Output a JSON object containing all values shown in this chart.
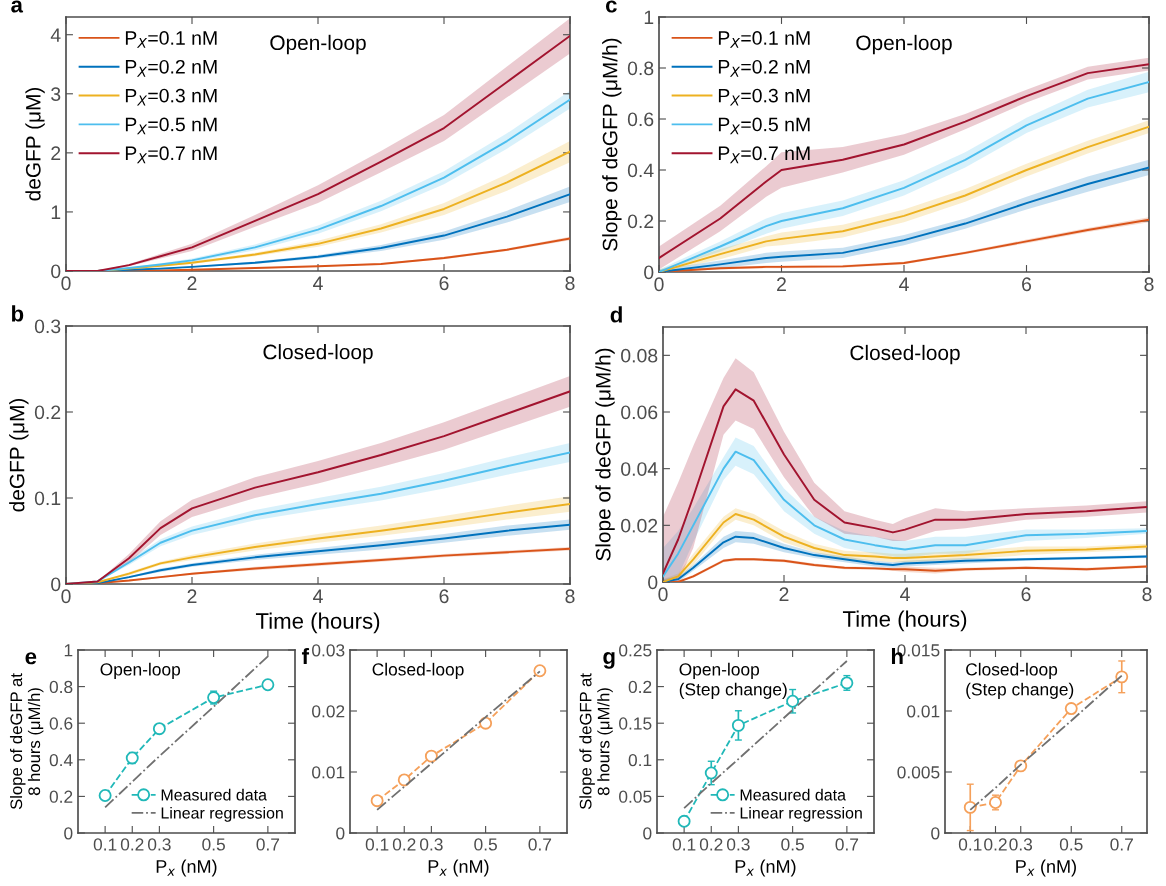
{
  "chart_data": [
    {
      "type": "line",
      "title": "a",
      "ylabel": "deGFP (μM)",
      "annotations": [
        "Open-loop"
      ],
      "legend": "top left",
      "xlim": [
        0,
        8
      ],
      "xticks": [
        0,
        2,
        4,
        6,
        8
      ],
      "ylim": [
        0,
        4.3
      ],
      "yticks": [
        0,
        1,
        2,
        3,
        4
      ],
      "x": [
        0,
        0.5,
        1,
        1.5,
        2,
        3,
        4,
        5,
        6,
        7,
        8
      ],
      "series": [
        {
          "name": "P$_{X}$=0.1 nM",
          "color": "#d95319",
          "values": [
            0,
            0,
            0.01,
            0.01,
            0.02,
            0.05,
            0.08,
            0.12,
            0.22,
            0.36,
            0.55
          ],
          "lower": [
            0,
            0,
            0.01,
            0.01,
            0.02,
            0.04,
            0.07,
            0.11,
            0.2,
            0.34,
            0.52
          ],
          "upper": [
            0,
            0,
            0.01,
            0.01,
            0.02,
            0.06,
            0.09,
            0.13,
            0.24,
            0.38,
            0.58
          ]
        },
        {
          "name": "P$_{X}$=0.2 nM",
          "color": "#0072bd",
          "values": [
            0,
            0,
            0.02,
            0.04,
            0.07,
            0.14,
            0.24,
            0.39,
            0.6,
            0.92,
            1.3
          ],
          "lower": [
            0,
            0,
            0.02,
            0.03,
            0.06,
            0.12,
            0.21,
            0.34,
            0.53,
            0.82,
            1.17
          ],
          "upper": [
            0,
            0,
            0.02,
            0.05,
            0.08,
            0.16,
            0.27,
            0.44,
            0.67,
            1.02,
            1.43
          ]
        },
        {
          "name": "P$_{X}$=0.3 nM",
          "color": "#edb120",
          "values": [
            0,
            0,
            0.04,
            0.09,
            0.14,
            0.28,
            0.46,
            0.72,
            1.05,
            1.5,
            2.02
          ],
          "lower": [
            0,
            0,
            0.03,
            0.08,
            0.12,
            0.25,
            0.41,
            0.65,
            0.95,
            1.36,
            1.84
          ],
          "upper": [
            0,
            0,
            0.05,
            0.1,
            0.16,
            0.31,
            0.51,
            0.79,
            1.15,
            1.64,
            2.2
          ]
        },
        {
          "name": "P$_{X}$=0.5 nM",
          "color": "#4dbeee",
          "values": [
            0,
            0,
            0.05,
            0.11,
            0.18,
            0.4,
            0.7,
            1.1,
            1.58,
            2.2,
            2.9
          ],
          "lower": [
            0,
            0,
            0.04,
            0.09,
            0.15,
            0.35,
            0.63,
            1.01,
            1.47,
            2.07,
            2.75
          ],
          "upper": [
            0,
            0,
            0.06,
            0.13,
            0.21,
            0.45,
            0.77,
            1.19,
            1.69,
            2.33,
            3.05
          ]
        },
        {
          "name": "P$_{X}$=0.7 nM",
          "color": "#a2142f",
          "values": [
            0,
            0,
            0.1,
            0.25,
            0.4,
            0.85,
            1.3,
            1.85,
            2.42,
            3.2,
            3.98
          ],
          "lower": [
            0,
            0,
            0.08,
            0.21,
            0.34,
            0.75,
            1.15,
            1.67,
            2.2,
            2.94,
            3.68
          ],
          "upper": [
            0,
            0,
            0.12,
            0.29,
            0.46,
            0.95,
            1.45,
            2.03,
            2.64,
            3.46,
            4.28
          ]
        }
      ]
    },
    {
      "type": "line",
      "title": "b",
      "ylabel": "deGFP (μM)",
      "xlabel": "Time (hours)",
      "annotations": [
        "Closed-loop"
      ],
      "xlim": [
        0,
        8
      ],
      "xticks": [
        0,
        2,
        4,
        6,
        8
      ],
      "ylim": [
        0,
        0.3
      ],
      "yticks": [
        0,
        0.1,
        0.2,
        0.3
      ],
      "x": [
        0,
        0.5,
        1,
        1.5,
        2,
        3,
        4,
        5,
        6,
        7,
        8
      ],
      "series": [
        {
          "color": "#d95319",
          "values": [
            0,
            0.001,
            0.004,
            0.008,
            0.012,
            0.018,
            0.023,
            0.028,
            0.033,
            0.037,
            0.041
          ],
          "lower": [
            0,
            0.001,
            0.003,
            0.007,
            0.011,
            0.016,
            0.021,
            0.026,
            0.031,
            0.035,
            0.039
          ],
          "upper": [
            0,
            0.001,
            0.005,
            0.009,
            0.013,
            0.02,
            0.025,
            0.03,
            0.035,
            0.039,
            0.043
          ]
        },
        {
          "color": "#0072bd",
          "values": [
            0,
            0.001,
            0.008,
            0.016,
            0.022,
            0.031,
            0.038,
            0.045,
            0.053,
            0.062,
            0.069
          ],
          "lower": [
            0,
            0.001,
            0.007,
            0.014,
            0.02,
            0.028,
            0.034,
            0.04,
            0.048,
            0.056,
            0.063
          ],
          "upper": [
            0,
            0.001,
            0.009,
            0.018,
            0.024,
            0.034,
            0.042,
            0.05,
            0.058,
            0.068,
            0.075
          ]
        },
        {
          "color": "#edb120",
          "values": [
            0,
            0.002,
            0.012,
            0.024,
            0.031,
            0.043,
            0.053,
            0.062,
            0.072,
            0.083,
            0.093
          ],
          "lower": [
            0,
            0.002,
            0.01,
            0.022,
            0.028,
            0.039,
            0.048,
            0.056,
            0.065,
            0.075,
            0.084
          ],
          "upper": [
            0,
            0.002,
            0.014,
            0.026,
            0.034,
            0.047,
            0.058,
            0.068,
            0.079,
            0.091,
            0.102
          ]
        },
        {
          "color": "#4dbeee",
          "values": [
            0,
            0.003,
            0.025,
            0.048,
            0.062,
            0.08,
            0.093,
            0.105,
            0.12,
            0.137,
            0.153
          ],
          "lower": [
            0,
            0.003,
            0.022,
            0.044,
            0.057,
            0.074,
            0.086,
            0.097,
            0.111,
            0.127,
            0.142
          ],
          "upper": [
            0,
            0.003,
            0.028,
            0.052,
            0.067,
            0.086,
            0.1,
            0.113,
            0.129,
            0.147,
            0.164
          ]
        },
        {
          "color": "#a2142f",
          "values": [
            0,
            0.003,
            0.03,
            0.065,
            0.088,
            0.112,
            0.13,
            0.15,
            0.172,
            0.198,
            0.224
          ],
          "lower": [
            0,
            0.003,
            0.025,
            0.057,
            0.078,
            0.1,
            0.117,
            0.136,
            0.156,
            0.181,
            0.206
          ],
          "upper": [
            0,
            0.003,
            0.035,
            0.073,
            0.098,
            0.124,
            0.143,
            0.164,
            0.188,
            0.215,
            0.242
          ]
        }
      ]
    },
    {
      "type": "line",
      "title": "c",
      "ylabel": "Slope of deGFP (μM/h)",
      "annotations": [
        "Open-loop"
      ],
      "legend": "top left",
      "xlim": [
        0,
        8
      ],
      "xticks": [
        0,
        2,
        4,
        6,
        8
      ],
      "ylim": [
        0,
        1
      ],
      "yticks": [
        0,
        0.2,
        0.4,
        0.6,
        0.8,
        1
      ],
      "x": [
        0,
        1,
        1.75,
        2,
        3,
        4,
        5,
        6,
        7,
        8
      ],
      "series": [
        {
          "name": "P$_{X}$=0.1 nM",
          "color": "#d95319",
          "values": [
            0,
            0.015,
            0.02,
            0.02,
            0.022,
            0.035,
            0.075,
            0.12,
            0.165,
            0.205
          ],
          "lower": [
            0,
            0.01,
            0.015,
            0.015,
            0.017,
            0.03,
            0.07,
            0.113,
            0.157,
            0.195
          ],
          "upper": [
            0.005,
            0.02,
            0.025,
            0.025,
            0.027,
            0.04,
            0.08,
            0.127,
            0.173,
            0.215
          ]
        },
        {
          "name": "P$_{X}$=0.2 nM",
          "color": "#0072bd",
          "values": [
            0,
            0.03,
            0.055,
            0.06,
            0.075,
            0.125,
            0.19,
            0.27,
            0.345,
            0.41
          ],
          "lower": [
            0,
            0.015,
            0.035,
            0.04,
            0.055,
            0.105,
            0.17,
            0.245,
            0.315,
            0.38
          ],
          "upper": [
            0.01,
            0.045,
            0.075,
            0.08,
            0.095,
            0.145,
            0.21,
            0.295,
            0.375,
            0.44
          ]
        },
        {
          "name": "P$_{X}$=0.3 nM",
          "color": "#edb120",
          "values": [
            0,
            0.07,
            0.12,
            0.13,
            0.16,
            0.22,
            0.3,
            0.4,
            0.49,
            0.57
          ],
          "lower": [
            0,
            0.05,
            0.1,
            0.105,
            0.135,
            0.195,
            0.275,
            0.375,
            0.465,
            0.545
          ],
          "upper": [
            0.01,
            0.09,
            0.14,
            0.155,
            0.185,
            0.245,
            0.325,
            0.425,
            0.515,
            0.595
          ]
        },
        {
          "name": "P$_{X}$=0.5 nM",
          "color": "#4dbeee",
          "values": [
            0,
            0.1,
            0.18,
            0.2,
            0.25,
            0.33,
            0.44,
            0.575,
            0.68,
            0.745
          ],
          "lower": [
            0,
            0.08,
            0.15,
            0.17,
            0.22,
            0.3,
            0.41,
            0.545,
            0.645,
            0.705
          ],
          "upper": [
            0.01,
            0.12,
            0.21,
            0.23,
            0.28,
            0.36,
            0.47,
            0.605,
            0.715,
            0.785
          ]
        },
        {
          "name": "P$_{X}$=0.7 nM",
          "color": "#a2142f",
          "values": [
            0.055,
            0.21,
            0.355,
            0.4,
            0.44,
            0.5,
            0.59,
            0.69,
            0.78,
            0.815
          ],
          "lower": [
            0.01,
            0.16,
            0.295,
            0.33,
            0.39,
            0.46,
            0.56,
            0.665,
            0.755,
            0.79
          ],
          "upper": [
            0.1,
            0.26,
            0.415,
            0.47,
            0.49,
            0.54,
            0.62,
            0.715,
            0.805,
            0.84
          ]
        }
      ]
    },
    {
      "type": "line",
      "title": "d",
      "ylabel": "Slope of deGFP (μM/h)",
      "xlabel": "Time (hours)",
      "annotations": [
        "Closed-loop"
      ],
      "xlim": [
        0,
        8
      ],
      "xticks": [
        0,
        2,
        4,
        6,
        8
      ],
      "ylim": [
        0,
        0.09
      ],
      "yticks": [
        0,
        0.02,
        0.04,
        0.06,
        0.08
      ],
      "x": [
        0,
        0.25,
        0.5,
        1,
        1.2,
        1.5,
        2,
        2.5,
        3,
        3.5,
        3.8,
        4,
        4.5,
        5,
        6,
        7,
        8
      ],
      "series": [
        {
          "color": "#d95319",
          "values": [
            0,
            0,
            0.002,
            0.0075,
            0.008,
            0.008,
            0.0075,
            0.006,
            0.005,
            0.0048,
            0.0045,
            0.0045,
            0.004,
            0.0045,
            0.005,
            0.0045,
            0.0055
          ],
          "lower": [
            0,
            0,
            0.0015,
            0.007,
            0.0075,
            0.0075,
            0.007,
            0.0055,
            0.0045,
            0.0043,
            0.004,
            0.0035,
            0.003,
            0.004,
            0.0045,
            0.004,
            0.005
          ],
          "upper": [
            0,
            0.0005,
            0.0025,
            0.008,
            0.0085,
            0.0085,
            0.008,
            0.0065,
            0.0055,
            0.0053,
            0.005,
            0.0055,
            0.005,
            0.005,
            0.0055,
            0.005,
            0.006
          ]
        },
        {
          "color": "#0072bd",
          "values": [
            0,
            0.001,
            0.005,
            0.014,
            0.016,
            0.0155,
            0.012,
            0.0095,
            0.008,
            0.0065,
            0.006,
            0.0065,
            0.007,
            0.0075,
            0.008,
            0.0085,
            0.009
          ],
          "lower": [
            0,
            0,
            0.004,
            0.012,
            0.014,
            0.0135,
            0.0105,
            0.0085,
            0.007,
            0.0055,
            0.005,
            0.0055,
            0.006,
            0.0065,
            0.0075,
            0.008,
            0.0085
          ],
          "upper": [
            0.001,
            0.002,
            0.006,
            0.016,
            0.018,
            0.0175,
            0.0135,
            0.0105,
            0.009,
            0.0075,
            0.007,
            0.0075,
            0.008,
            0.0085,
            0.0085,
            0.009,
            0.0095
          ]
        },
        {
          "color": "#edb120",
          "values": [
            0,
            0.002,
            0.008,
            0.021,
            0.024,
            0.022,
            0.016,
            0.012,
            0.0095,
            0.009,
            0.0085,
            0.0085,
            0.009,
            0.0095,
            0.011,
            0.0115,
            0.0125
          ],
          "lower": [
            0,
            0.001,
            0.006,
            0.019,
            0.022,
            0.02,
            0.014,
            0.0105,
            0.008,
            0.0075,
            0.007,
            0.007,
            0.0075,
            0.008,
            0.0095,
            0.0105,
            0.0115
          ],
          "upper": [
            0.001,
            0.003,
            0.01,
            0.023,
            0.026,
            0.024,
            0.018,
            0.0135,
            0.011,
            0.0105,
            0.01,
            0.01,
            0.0105,
            0.011,
            0.0125,
            0.0125,
            0.0135
          ]
        },
        {
          "color": "#4dbeee",
          "values": [
            0.002,
            0.01,
            0.02,
            0.04,
            0.046,
            0.043,
            0.029,
            0.02,
            0.015,
            0.013,
            0.012,
            0.0115,
            0.013,
            0.013,
            0.0165,
            0.017,
            0.018
          ],
          "lower": [
            0,
            0.002,
            0.014,
            0.036,
            0.041,
            0.038,
            0.025,
            0.017,
            0.012,
            0.01,
            0.009,
            0.0085,
            0.01,
            0.01,
            0.0145,
            0.0155,
            0.017
          ],
          "upper": [
            0.012,
            0.018,
            0.026,
            0.044,
            0.051,
            0.048,
            0.033,
            0.023,
            0.018,
            0.016,
            0.015,
            0.0145,
            0.016,
            0.016,
            0.0185,
            0.0185,
            0.019
          ]
        },
        {
          "color": "#a2142f",
          "values": [
            0.003,
            0.015,
            0.03,
            0.062,
            0.068,
            0.064,
            0.045,
            0.029,
            0.021,
            0.019,
            0.0175,
            0.0185,
            0.022,
            0.022,
            0.024,
            0.025,
            0.0265
          ],
          "lower": [
            0,
            0,
            0.012,
            0.052,
            0.057,
            0.054,
            0.037,
            0.023,
            0.017,
            0.016,
            0.0145,
            0.0145,
            0.018,
            0.019,
            0.022,
            0.023,
            0.0245
          ],
          "upper": [
            0.023,
            0.035,
            0.048,
            0.072,
            0.079,
            0.074,
            0.053,
            0.035,
            0.025,
            0.022,
            0.0205,
            0.0225,
            0.026,
            0.025,
            0.026,
            0.027,
            0.0285
          ]
        }
      ]
    },
    {
      "type": "line",
      "title": "e",
      "ylabel": "Slope of deGFP at\n8 hours (μM/h)",
      "xlabel": "P$_{x}$ (nM)",
      "annotations": [
        "Open-loop"
      ],
      "legend": "bottom right",
      "xlim": [
        0,
        0.8
      ],
      "xticks": [
        0.1,
        0.2,
        0.3,
        0.5,
        0.7
      ],
      "ylim": [
        0,
        1
      ],
      "yticks": [
        0,
        0.2,
        0.4,
        0.6,
        0.8,
        1
      ],
      "x": [
        0.1,
        0.2,
        0.3,
        0.5,
        0.7
      ],
      "series": [
        {
          "name": "Measured data",
          "color": "#20b8b8",
          "marker": "circle",
          "line_style": "dashed",
          "values": [
            0.205,
            0.41,
            0.57,
            0.74,
            0.81
          ],
          "errors": [
            0.02,
            0.03,
            0.02,
            0.035,
            0.02
          ]
        },
        {
          "name": "Linear regression",
          "color": "#707070",
          "line_style": "dashdot",
          "values": [
            0.14,
            0.28,
            0.42,
            0.69,
            0.965
          ]
        }
      ]
    },
    {
      "type": "line",
      "title": "f",
      "xlabel": "P$_{x}$ (nM)",
      "annotations": [
        "Closed-loop"
      ],
      "xlim": [
        0,
        0.8
      ],
      "xticks": [
        0.1,
        0.2,
        0.3,
        0.5,
        0.7
      ],
      "ylim": [
        0,
        0.03
      ],
      "yticks": [
        0,
        0.01,
        0.02,
        0.03
      ],
      "x": [
        0.1,
        0.2,
        0.3,
        0.5,
        0.7
      ],
      "series": [
        {
          "color": "#f5a05a",
          "marker": "circle",
          "line_style": "dashed",
          "values": [
            0.0053,
            0.0087,
            0.0126,
            0.018,
            0.0266
          ],
          "errors": [
            0.0005,
            0.0005,
            0.0005,
            0.0006,
            0.0005
          ]
        },
        {
          "color": "#707070",
          "line_style": "dashdot",
          "values": [
            0.0038,
            0.0076,
            0.0114,
            0.019,
            0.0265
          ]
        }
      ]
    },
    {
      "type": "line",
      "title": "g",
      "ylabel": "Slope of deGFP at\n8 hours (μM/h)",
      "xlabel": "P$_{x}$ (nM)",
      "annotations": [
        "Open-loop\n(Step change)"
      ],
      "legend": "bottom right",
      "xlim": [
        0,
        0.8
      ],
      "xticks": [
        0.1,
        0.2,
        0.3,
        0.5,
        0.7
      ],
      "ylim": [
        0,
        0.25
      ],
      "yticks": [
        0,
        0.05,
        0.1,
        0.15,
        0.2,
        0.25
      ],
      "x": [
        0.1,
        0.2,
        0.3,
        0.5,
        0.7
      ],
      "series": [
        {
          "name": "Measured data",
          "color": "#20b8b8",
          "marker": "circle",
          "line_style": "dashed",
          "values": [
            0.016,
            0.082,
            0.147,
            0.18,
            0.205
          ],
          "errors": [
            0.005,
            0.016,
            0.02,
            0.016,
            0.01
          ]
        },
        {
          "name": "Linear regression",
          "color": "#707070",
          "line_style": "dashdot",
          "values": [
            0.034,
            0.068,
            0.101,
            0.168,
            0.235
          ]
        }
      ]
    },
    {
      "type": "line",
      "title": "h",
      "xlabel": "P$_{x}$ (nM)",
      "annotations": [
        "Closed-loop\n(Step change)"
      ],
      "xlim": [
        0,
        0.8
      ],
      "xticks": [
        0.1,
        0.2,
        0.3,
        0.5,
        0.7
      ],
      "ylim": [
        0,
        0.015
      ],
      "yticks": [
        0,
        0.005,
        0.01,
        0.015
      ],
      "x": [
        0.1,
        0.2,
        0.3,
        0.5,
        0.7
      ],
      "series": [
        {
          "color": "#f5a05a",
          "marker": "circle",
          "line_style": "dashed",
          "values": [
            0.0021,
            0.0025,
            0.0055,
            0.0102,
            0.0128
          ],
          "errors": [
            0.0019,
            0.0006,
            0.0002,
            0.0003,
            0.0013
          ]
        },
        {
          "color": "#707070",
          "line_style": "dashdot",
          "values": [
            0.0019,
            0.0037,
            0.0056,
            0.0092,
            0.0129
          ]
        }
      ]
    }
  ]
}
